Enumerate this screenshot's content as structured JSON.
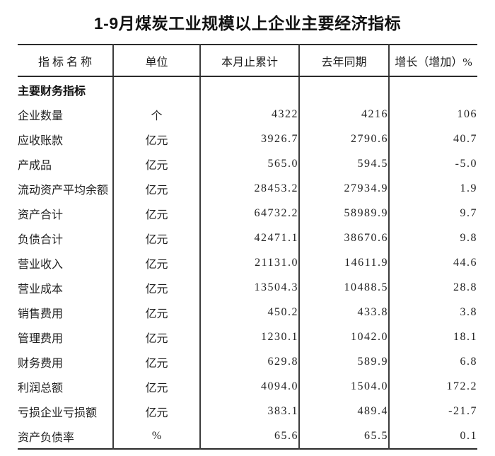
{
  "title": "1-9月煤炭工业规模以上企业主要经济指标",
  "colors": {
    "background": "#ffffff",
    "text": "#1c1c1c",
    "border": "#2b2b2b"
  },
  "table": {
    "columns": [
      "指 标 名 称",
      "单位",
      "本月止累计",
      "去年同期",
      "增长（增加）%"
    ],
    "section_header": "主要财务指标",
    "rows": [
      {
        "name": "企业数量",
        "unit": "个",
        "current": "4322",
        "last_year": "4216",
        "growth": "106"
      },
      {
        "name": "应收账款",
        "unit": "亿元",
        "current": "3926.7",
        "last_year": "2790.6",
        "growth": "40.7"
      },
      {
        "name": "产成品",
        "unit": "亿元",
        "current": "565.0",
        "last_year": "594.5",
        "growth": "-5.0"
      },
      {
        "name": "流动资产平均余额",
        "unit": "亿元",
        "current": "28453.2",
        "last_year": "27934.9",
        "growth": "1.9"
      },
      {
        "name": "资产合计",
        "unit": "亿元",
        "current": "64732.2",
        "last_year": "58989.9",
        "growth": "9.7"
      },
      {
        "name": "负债合计",
        "unit": "亿元",
        "current": "42471.1",
        "last_year": "38670.6",
        "growth": "9.8"
      },
      {
        "name": "营业收入",
        "unit": "亿元",
        "current": "21131.0",
        "last_year": "14611.9",
        "growth": "44.6"
      },
      {
        "name": "营业成本",
        "unit": "亿元",
        "current": "13504.3",
        "last_year": "10488.5",
        "growth": "28.8"
      },
      {
        "name": "销售费用",
        "unit": "亿元",
        "current": "450.2",
        "last_year": "433.8",
        "growth": "3.8"
      },
      {
        "name": "管理费用",
        "unit": "亿元",
        "current": "1230.1",
        "last_year": "1042.0",
        "growth": "18.1"
      },
      {
        "name": "财务费用",
        "unit": "亿元",
        "current": "629.8",
        "last_year": "589.9",
        "growth": "6.8"
      },
      {
        "name": "利润总额",
        "unit": "亿元",
        "current": "4094.0",
        "last_year": "1504.0",
        "growth": "172.2"
      },
      {
        "name": "亏损企业亏损额",
        "unit": "亿元",
        "current": "383.1",
        "last_year": "489.4",
        "growth": "-21.7"
      },
      {
        "name": "资产负债率",
        "unit": "%",
        "current": "65.6",
        "last_year": "65.5",
        "growth": "0.1"
      }
    ]
  }
}
